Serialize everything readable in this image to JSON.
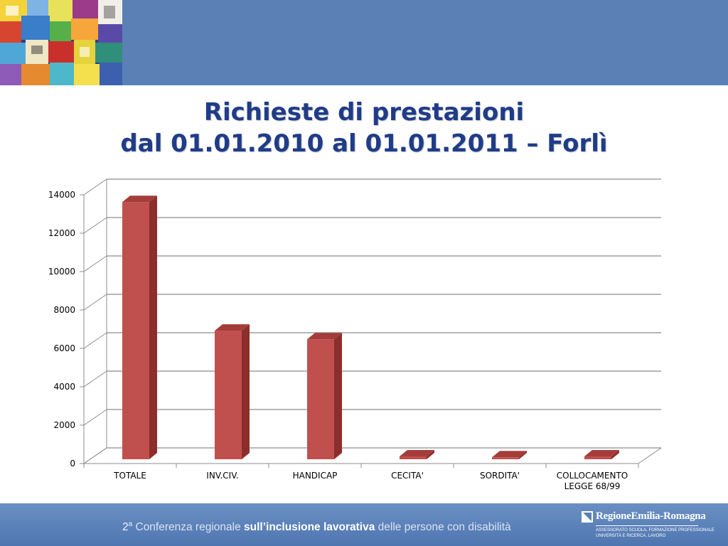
{
  "title": {
    "line1": "Richieste di prestazioni",
    "line2": "dal 01.01.2010 al 01.01.2011 – Forlì"
  },
  "footer": {
    "ordinal": "2",
    "ordinal_sup": "a",
    "part1": " Conferenza regionale ",
    "part2": "sull’inclusione lavorativa",
    "part3": " delle persone con disabilità",
    "logo_name": "RegioneEmilia-Romagna",
    "logo_sub1": "ASSESSORATO SCUOLA, FORMAZIONE PROFESSIONALE",
    "logo_sub2": "UNIVERSITÀ E RICERCA, LAVORO"
  },
  "colors": {
    "band": "#5b80b6",
    "title": "#1f3c88",
    "bar_front": "#c0504d",
    "bar_side": "#8c2e2c",
    "bar_top": "#a43c39"
  },
  "chart_data": {
    "type": "bar",
    "title": "Richieste di prestazioni dal 01.01.2010 al 01.01.2011 – Forlì",
    "categories": [
      "TOTALE",
      "INV.CIV.",
      "HANDICAP",
      "CECITA'",
      "SORDITA'",
      "COLLOCAMENTO LEGGE 68/99"
    ],
    "values": [
      13400,
      6700,
      6250,
      150,
      100,
      150
    ],
    "yticks": [
      0,
      2000,
      4000,
      6000,
      8000,
      10000,
      12000,
      14000
    ],
    "ylim": [
      0,
      14000
    ],
    "grid": true,
    "legend": "none",
    "style": "3d"
  }
}
